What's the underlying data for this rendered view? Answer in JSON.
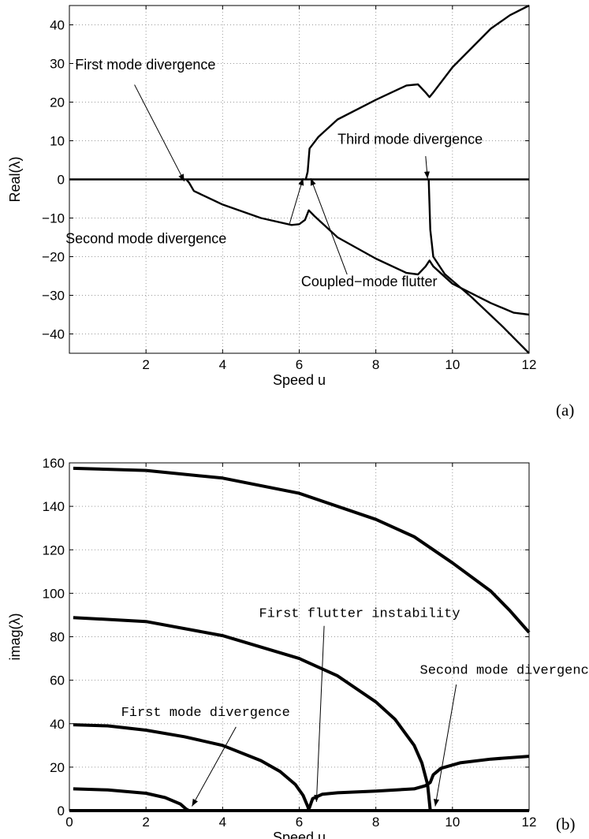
{
  "chart_data": [
    {
      "id": "a",
      "type": "line",
      "panel_label": "(a)",
      "xlabel": "Speed u",
      "ylabel": "Real(λ)",
      "xlim": [
        0,
        12
      ],
      "ylim": [
        -45,
        45
      ],
      "xticks": [
        2,
        4,
        6,
        8,
        10,
        12
      ],
      "yticks": [
        -40,
        -30,
        -20,
        -10,
        0,
        10,
        20,
        30,
        40
      ],
      "grid": true,
      "series": [
        {
          "points": [
            [
              0,
              0
            ],
            [
              12,
              0
            ]
          ]
        },
        {
          "points": [
            [
              3.05,
              0
            ],
            [
              3.12,
              -0.8
            ],
            [
              3.25,
              -3
            ],
            [
              4.0,
              -6.5
            ],
            [
              5.0,
              -10
            ],
            [
              5.8,
              -11.8
            ],
            [
              6.0,
              -11.6
            ],
            [
              6.15,
              -10.5
            ],
            [
              6.25,
              -8
            ],
            [
              6.4,
              -9.5
            ],
            [
              7.0,
              -15
            ],
            [
              8.0,
              -20.5
            ],
            [
              8.8,
              -24.2
            ],
            [
              9.1,
              -24.6
            ],
            [
              9.3,
              -22.5
            ],
            [
              9.4,
              -21
            ],
            [
              9.5,
              -22.5
            ],
            [
              10.0,
              -27
            ],
            [
              11.0,
              -32
            ],
            [
              11.6,
              -34.5
            ],
            [
              12,
              -35
            ]
          ]
        },
        {
          "points": [
            [
              6.17,
              0
            ],
            [
              6.22,
              2
            ],
            [
              6.27,
              8
            ],
            [
              6.5,
              11
            ],
            [
              7.0,
              15.5
            ],
            [
              8.0,
              20.6
            ],
            [
              8.8,
              24.3
            ],
            [
              9.1,
              24.6
            ],
            [
              9.3,
              22.5
            ],
            [
              9.4,
              21.3
            ],
            [
              9.5,
              22.5
            ],
            [
              10.0,
              29
            ],
            [
              11.0,
              39
            ],
            [
              11.5,
              42.5
            ],
            [
              12,
              45
            ]
          ]
        },
        {
          "points": [
            [
              9.38,
              0
            ],
            [
              9.42,
              -13
            ],
            [
              9.5,
              -20
            ],
            [
              9.8,
              -24.5
            ],
            [
              10.5,
              -30.5
            ],
            [
              11.3,
              -38
            ],
            [
              12,
              -45
            ]
          ]
        }
      ],
      "annotations": [
        {
          "text": "First mode divergence",
          "x": 0.15,
          "y": 28.5,
          "point": [
            3.0,
            -0.5
          ]
        },
        {
          "text": "Second mode divergence",
          "x": -0.1,
          "y": -16.5,
          "point": [
            6.1,
            0.3
          ]
        },
        {
          "text": "Coupled−mode flutter",
          "x": 6.05,
          "y": -27.7,
          "point": [
            6.3,
            0.3
          ]
        },
        {
          "text": "Third mode divergence",
          "x": 7.0,
          "y": 9.2,
          "point": [
            9.35,
            0.2
          ]
        }
      ]
    },
    {
      "id": "b",
      "type": "line",
      "panel_label": "(b)",
      "xlabel": "Speed u",
      "ylabel": "imag(λ)",
      "xlim": [
        0,
        12
      ],
      "ylim": [
        0,
        160
      ],
      "xticks": [
        0,
        2,
        4,
        6,
        8,
        10,
        12
      ],
      "yticks": [
        0,
        20,
        40,
        60,
        80,
        100,
        120,
        140,
        160
      ],
      "grid": true,
      "series": [
        {
          "points": [
            [
              0.1,
              157.5
            ],
            [
              2,
              156.5
            ],
            [
              4,
              153
            ],
            [
              6,
              146
            ],
            [
              8,
              134
            ],
            [
              9,
              126
            ],
            [
              10,
              114
            ],
            [
              11,
              101
            ],
            [
              11.5,
              92
            ],
            [
              12,
              82
            ]
          ]
        },
        {
          "points": [
            [
              0.1,
              88.8
            ],
            [
              2,
              87
            ],
            [
              4,
              80.5
            ],
            [
              6,
              70
            ],
            [
              7,
              62
            ],
            [
              8,
              50
            ],
            [
              8.5,
              42
            ],
            [
              9,
              30
            ],
            [
              9.2,
              22
            ],
            [
              9.35,
              12
            ],
            [
              9.42,
              0
            ]
          ]
        },
        {
          "points": [
            [
              0.1,
              39.5
            ],
            [
              1,
              39
            ],
            [
              2,
              37
            ],
            [
              3,
              34
            ],
            [
              4,
              30
            ],
            [
              5,
              23
            ],
            [
              5.5,
              18
            ],
            [
              5.9,
              12
            ],
            [
              6.1,
              7
            ],
            [
              6.22,
              2
            ],
            [
              6.26,
              0
            ]
          ]
        },
        {
          "points": [
            [
              0.1,
              10
            ],
            [
              1,
              9.5
            ],
            [
              2,
              8
            ],
            [
              2.5,
              6
            ],
            [
              2.9,
              3
            ],
            [
              3.05,
              0.7
            ],
            [
              3.12,
              0
            ]
          ]
        },
        {
          "points": [
            [
              6.26,
              1
            ],
            [
              6.35,
              5.5
            ],
            [
              6.6,
              7.5
            ],
            [
              7,
              8.2
            ],
            [
              8,
              9
            ],
            [
              9,
              10
            ],
            [
              9.3,
              11.5
            ],
            [
              9.42,
              13
            ],
            [
              9.5,
              16.5
            ],
            [
              9.7,
              19.5
            ],
            [
              10.2,
              22
            ],
            [
              11,
              23.7
            ],
            [
              12,
              25
            ]
          ]
        },
        {
          "points": [
            [
              0,
              0
            ],
            [
              12,
              0
            ]
          ]
        }
      ],
      "annotations": [
        {
          "text": "First mode divergence",
          "x": 1.35,
          "y": 43.5,
          "point": [
            3.2,
            2
          ]
        },
        {
          "text": "First flutter instability",
          "x": 4.95,
          "y": 89,
          "point": [
            6.45,
            4
          ]
        },
        {
          "text": "Second mode divergence",
          "x": 9.15,
          "y": 63,
          "point": [
            9.55,
            2
          ]
        }
      ]
    }
  ]
}
